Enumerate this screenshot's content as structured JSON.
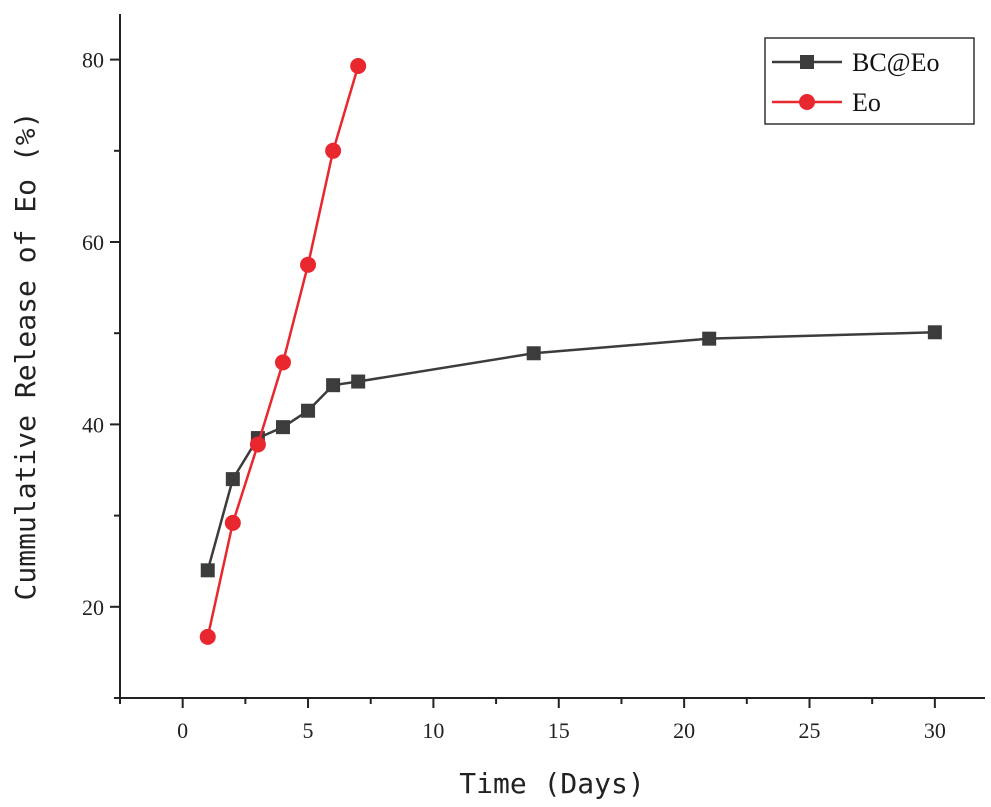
{
  "chart_data": {
    "type": "line",
    "title": "",
    "xlabel": "Time (Days)",
    "ylabel": "Cummulative Release of Eo (%)",
    "xlim": [
      -2.5,
      32
    ],
    "ylim": [
      10,
      85
    ],
    "xticks": [
      0,
      5,
      10,
      15,
      20,
      25,
      30
    ],
    "yticks": [
      20,
      40,
      60,
      80
    ],
    "xtick_labels": [
      "0",
      "5",
      "10",
      "15",
      "20",
      "25",
      "30"
    ],
    "ytick_labels": [
      "20",
      "40",
      "60",
      "80"
    ],
    "legend_position": "top-right",
    "grid": false,
    "series": [
      {
        "name": "BC@Eo",
        "marker": "square",
        "color": "#3c3c3c",
        "x": [
          1,
          2,
          3,
          4,
          5,
          6,
          7,
          14,
          21,
          30
        ],
        "y": [
          24.0,
          34.0,
          38.5,
          39.7,
          41.5,
          44.3,
          44.7,
          47.8,
          49.4,
          50.1
        ]
      },
      {
        "name": "Eo",
        "marker": "circle",
        "color": "#e8272e",
        "x": [
          1,
          2,
          3,
          4,
          5,
          6,
          7
        ],
        "y": [
          16.7,
          29.2,
          37.8,
          46.8,
          57.5,
          70.0,
          79.3
        ]
      }
    ]
  }
}
